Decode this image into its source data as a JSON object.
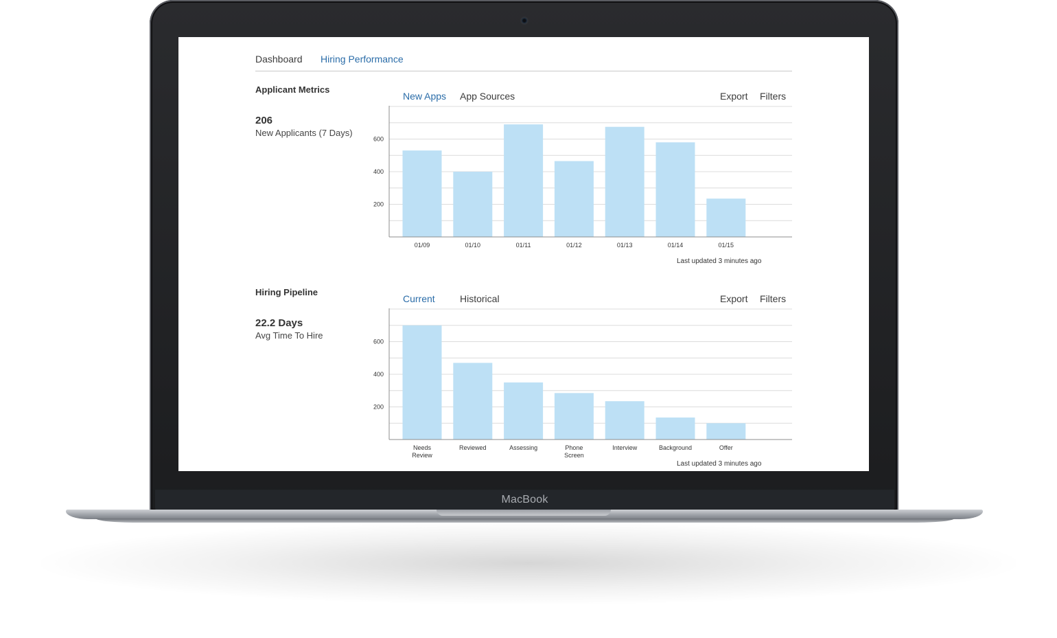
{
  "device": {
    "brand": "MacBook"
  },
  "nav": {
    "tabs": [
      {
        "label": "Dashboard"
      },
      {
        "label": "Hiring Performance"
      }
    ]
  },
  "sections": [
    {
      "title": "Applicant Metrics",
      "metric_value": "206",
      "metric_label": "New Applicants (7 Days)",
      "tabs": [
        {
          "label": "New Apps"
        },
        {
          "label": "App Sources"
        }
      ],
      "actions": {
        "export": "Export",
        "filters": "Filters"
      },
      "updated": "Last updated 3 minutes ago"
    },
    {
      "title": "Hiring Pipeline",
      "metric_value": "22.2 Days",
      "metric_label": "Avg Time To Hire",
      "tabs": [
        {
          "label": "Current"
        },
        {
          "label": "Historical"
        }
      ],
      "actions": {
        "export": "Export",
        "filters": "Filters"
      },
      "updated": "Last updated 3 minutes ago"
    }
  ],
  "colors": {
    "bar": "#bde0f5",
    "accent": "#2a6ca8",
    "grid": "#dcdcdc",
    "axis": "#8c8c8c"
  },
  "chart_data": [
    {
      "type": "bar",
      "categories": [
        "01/09",
        "01/10",
        "01/11",
        "01/12",
        "01/13",
        "01/14",
        "01/15"
      ],
      "values": [
        530,
        400,
        690,
        465,
        675,
        580,
        235
      ],
      "yticks": [
        200,
        400,
        600
      ],
      "ylim": [
        0,
        800
      ],
      "grid": true
    },
    {
      "type": "bar",
      "categories": [
        [
          "Needs",
          "Review"
        ],
        [
          "Reviewed"
        ],
        [
          "Assessing"
        ],
        [
          "Phone",
          "Screen"
        ],
        [
          "Interview"
        ],
        [
          "Background"
        ],
        [
          "Offer"
        ]
      ],
      "values": [
        700,
        470,
        350,
        285,
        235,
        135,
        100
      ],
      "yticks": [
        200,
        400,
        600
      ],
      "ylim": [
        0,
        800
      ],
      "grid": true
    }
  ]
}
